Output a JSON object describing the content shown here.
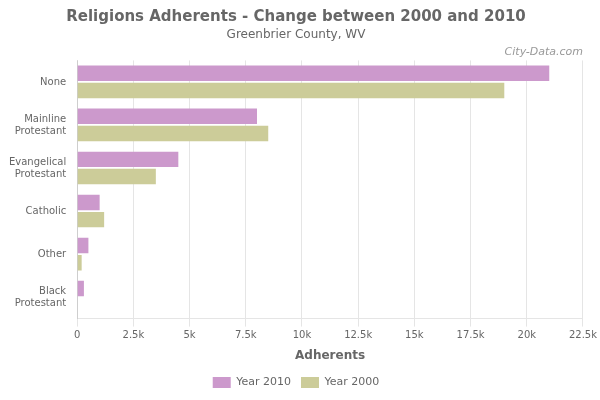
{
  "chart_data": {
    "type": "bar",
    "orientation": "horizontal",
    "title": "Religions Adherents - Change between 2000 and 2010",
    "subtitle": "Greenbrier County, WV",
    "xlabel": "Adherents",
    "annotations": [
      "City-Data.com"
    ],
    "categories": [
      "Black\nProtestant",
      "Other",
      "Catholic",
      "Evangelical\nProtestant",
      "Mainline\nProtestant",
      "None"
    ],
    "series": [
      {
        "name": "Year 2010",
        "color": "#cc99cc",
        "values": [
          300,
          500,
          1000,
          4500,
          8000,
          21000
        ]
      },
      {
        "name": "Year 2000",
        "color": "#cccc99",
        "values": [
          0,
          200,
          1200,
          3500,
          8500,
          19000
        ]
      }
    ],
    "xlim": [
      0,
      22500
    ],
    "xticks": [
      0,
      {
        "value": 2500,
        "label": "2.5k"
      },
      {
        "value": 5000,
        "label": "5k"
      },
      {
        "value": 7500,
        "label": "7.5k"
      },
      {
        "value": 10000,
        "label": "10k"
      },
      {
        "value": 12500,
        "label": "12.5k"
      },
      {
        "value": 15000,
        "label": "15k"
      },
      {
        "value": 17500,
        "label": "17.5k"
      },
      {
        "value": 20000,
        "label": "20k"
      },
      {
        "value": 22500,
        "label": "22.5k"
      }
    ],
    "grid": true,
    "legend": "bottom"
  }
}
